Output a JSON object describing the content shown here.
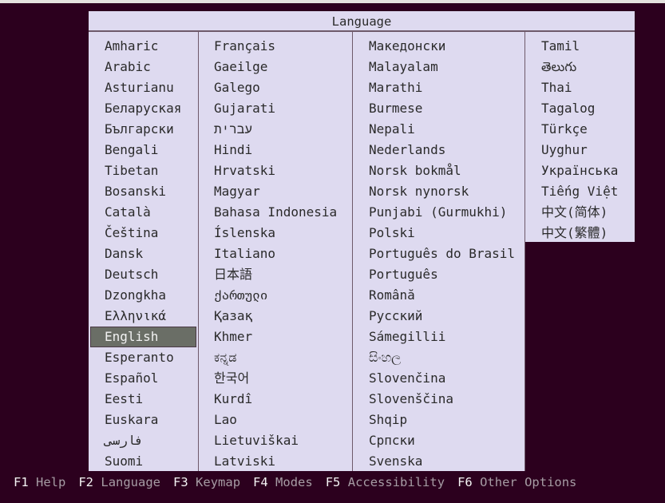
{
  "dialog": {
    "title": "Language"
  },
  "selected": "English",
  "columns": [
    [
      "Amharic",
      "Arabic",
      "Asturianu",
      "Беларуская",
      "Български",
      "Bengali",
      "Tibetan",
      "Bosanski",
      "Català",
      "Čeština",
      "Dansk",
      "Deutsch",
      "Dzongkha",
      "Ελληνικά",
      "English",
      "Esperanto",
      "Español",
      "Eesti",
      "Euskara",
      "فارسی",
      "Suomi"
    ],
    [
      "Français",
      "Gaeilge",
      "Galego",
      "Gujarati",
      "עברית",
      "Hindi",
      "Hrvatski",
      "Magyar",
      "Bahasa Indonesia",
      "Íslenska",
      "Italiano",
      "日本語",
      "ქართული",
      "Қазақ",
      "Khmer",
      "ಕನ್ನಡ",
      "한국어",
      "Kurdî",
      "Lao",
      "Lietuviškai",
      "Latviski"
    ],
    [
      "Македонски",
      "Malayalam",
      "Marathi",
      "Burmese",
      "Nepali",
      "Nederlands",
      "Norsk bokmål",
      "Norsk nynorsk",
      "Punjabi (Gurmukhi)",
      "Polski",
      "Português do Brasil",
      "Português",
      "Română",
      "Русский",
      "Sámegillii",
      "සිංහල",
      "Slovenčina",
      "Slovenščina",
      "Shqip",
      "Српски",
      "Svenska"
    ],
    [
      "Tamil",
      "తెలుగు",
      "Thai",
      "Tagalog",
      "Türkçe",
      "Uyghur",
      "Українська",
      "Tiếng Việt",
      "中文(简体)",
      "中文(繁體)"
    ]
  ],
  "footer": [
    {
      "key": "F1",
      "label": "Help"
    },
    {
      "key": "F2",
      "label": "Language"
    },
    {
      "key": "F3",
      "label": "Keymap"
    },
    {
      "key": "F4",
      "label": "Modes"
    },
    {
      "key": "F5",
      "label": "Accessibility"
    },
    {
      "key": "F6",
      "label": "Other Options"
    }
  ],
  "colors": {
    "background": "#2c001e",
    "panel": "#dedaf0",
    "selection": "#6a6e66",
    "footer_label": "#a69ca4"
  }
}
